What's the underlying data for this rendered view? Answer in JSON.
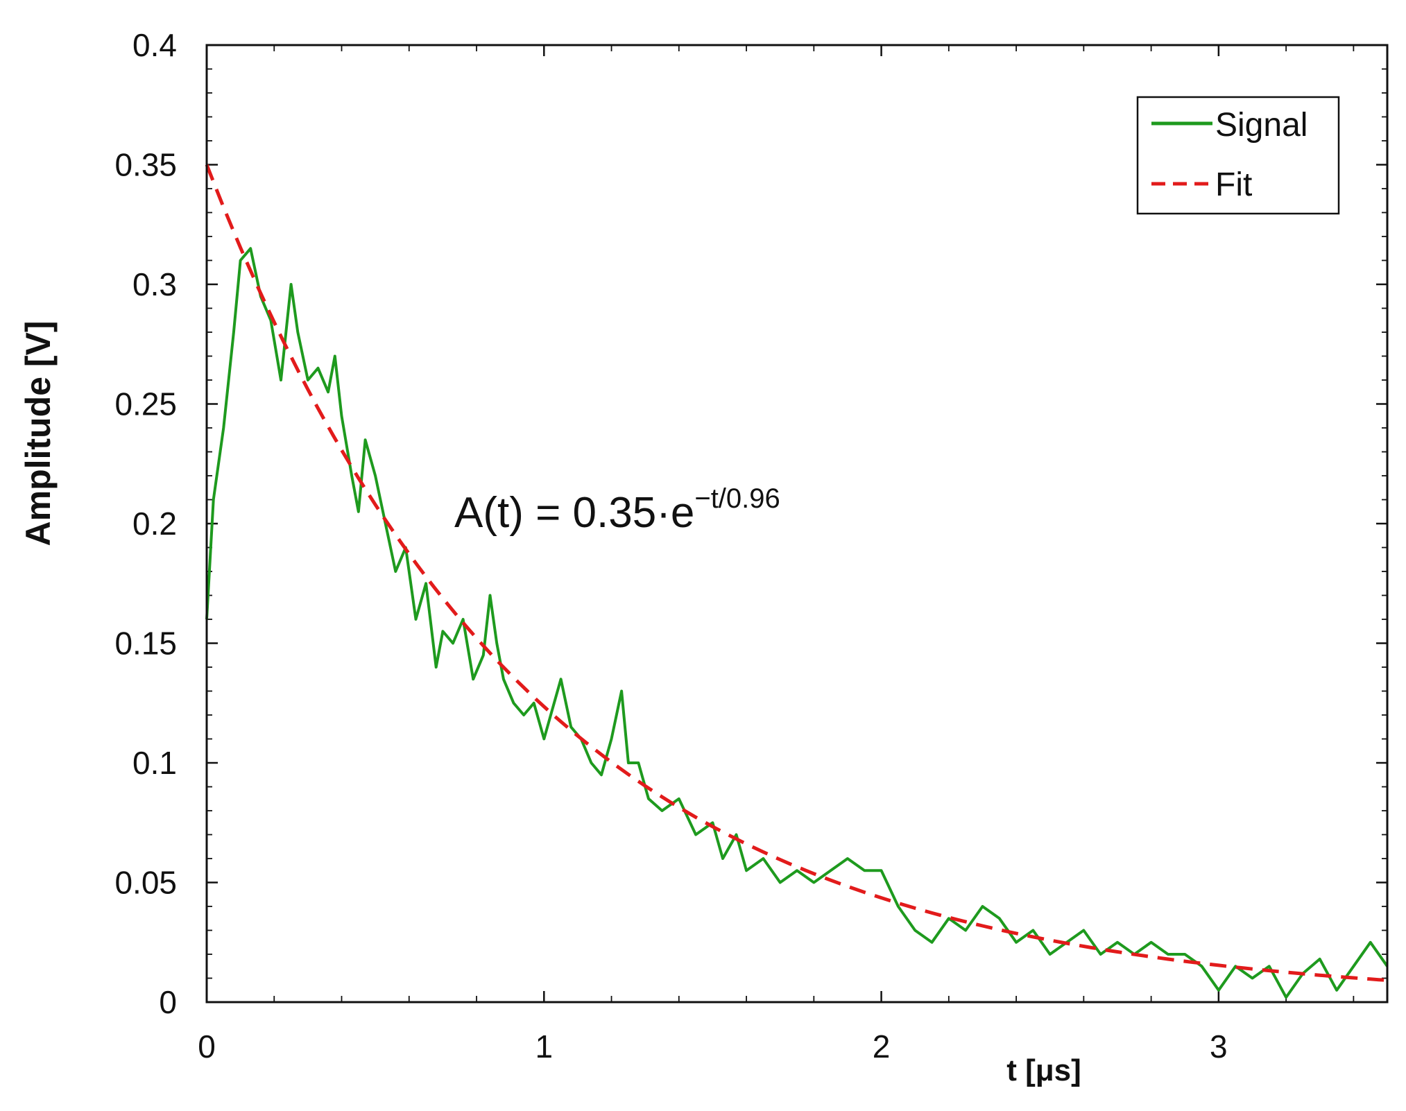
{
  "chart_data": {
    "type": "line",
    "xlabel": "t [μs]",
    "ylabel": "Amplitude [V]",
    "xlim": [
      0,
      3.5
    ],
    "ylim": [
      0,
      0.4
    ],
    "x_ticks": [
      "0",
      "1",
      "2",
      "3"
    ],
    "y_ticks": [
      "0",
      "0.05",
      "0.1",
      "0.15",
      "0.2",
      "0.25",
      "0.3",
      "0.35",
      "0.4"
    ],
    "grid": false,
    "legend_position": "top-right",
    "annotation": {
      "prefix": "A(t) = 0.35·e",
      "exponent": "−t/0.96"
    },
    "series": [
      {
        "name": "Signal",
        "style": "solid",
        "color": "#1e9a1e",
        "x": [
          0,
          0.02,
          0.05,
          0.08,
          0.1,
          0.13,
          0.16,
          0.19,
          0.22,
          0.25,
          0.27,
          0.3,
          0.33,
          0.36,
          0.38,
          0.4,
          0.43,
          0.45,
          0.47,
          0.5,
          0.53,
          0.56,
          0.59,
          0.62,
          0.65,
          0.68,
          0.7,
          0.73,
          0.76,
          0.79,
          0.82,
          0.84,
          0.86,
          0.88,
          0.91,
          0.94,
          0.97,
          1.0,
          1.02,
          1.05,
          1.08,
          1.11,
          1.14,
          1.17,
          1.2,
          1.23,
          1.25,
          1.28,
          1.31,
          1.35,
          1.4,
          1.45,
          1.5,
          1.53,
          1.57,
          1.6,
          1.65,
          1.7,
          1.75,
          1.8,
          1.85,
          1.9,
          1.95,
          2.0,
          2.05,
          2.1,
          2.15,
          2.2,
          2.25,
          2.3,
          2.35,
          2.4,
          2.45,
          2.5,
          2.55,
          2.6,
          2.65,
          2.7,
          2.75,
          2.8,
          2.85,
          2.9,
          2.95,
          3.0,
          3.05,
          3.1,
          3.15,
          3.2,
          3.25,
          3.3,
          3.35,
          3.4,
          3.45,
          3.5
        ],
        "y": [
          0.16,
          0.21,
          0.24,
          0.28,
          0.31,
          0.315,
          0.295,
          0.285,
          0.26,
          0.3,
          0.28,
          0.26,
          0.265,
          0.255,
          0.27,
          0.245,
          0.22,
          0.205,
          0.235,
          0.22,
          0.2,
          0.18,
          0.19,
          0.16,
          0.175,
          0.14,
          0.155,
          0.15,
          0.16,
          0.135,
          0.145,
          0.17,
          0.15,
          0.135,
          0.125,
          0.12,
          0.125,
          0.11,
          0.12,
          0.135,
          0.115,
          0.11,
          0.1,
          0.095,
          0.11,
          0.13,
          0.1,
          0.1,
          0.085,
          0.08,
          0.085,
          0.07,
          0.075,
          0.06,
          0.07,
          0.055,
          0.06,
          0.05,
          0.055,
          0.05,
          0.055,
          0.06,
          0.055,
          0.055,
          0.04,
          0.03,
          0.025,
          0.035,
          0.03,
          0.04,
          0.035,
          0.025,
          0.03,
          0.02,
          0.025,
          0.03,
          0.02,
          0.025,
          0.02,
          0.025,
          0.02,
          0.02,
          0.015,
          0.005,
          0.015,
          0.01,
          0.015,
          0.002,
          0.012,
          0.018,
          0.005,
          0.015,
          0.025,
          0.015
        ]
      },
      {
        "name": "Fit",
        "style": "dashed",
        "color": "#e21b1b",
        "function": "0.35*exp(-t/0.96)"
      }
    ]
  }
}
